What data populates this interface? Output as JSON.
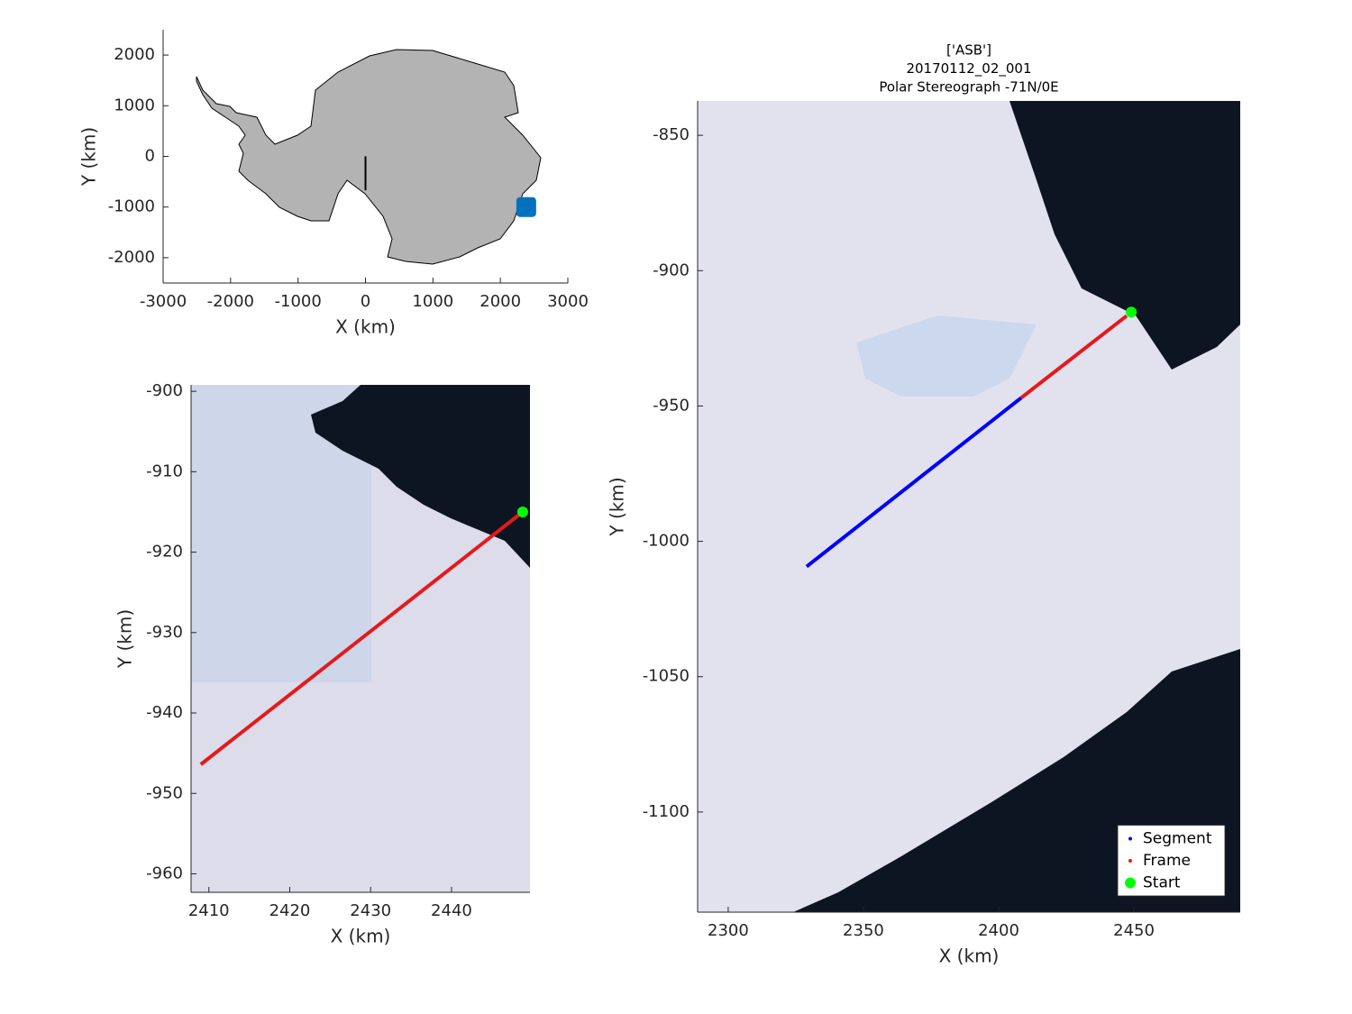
{
  "chart_data": [
    {
      "type": "line",
      "xlabel": "X (km)",
      "ylabel": "Y (km)",
      "xlim": [
        -3000,
        3000
      ],
      "ylim": [
        -2500,
        2500
      ],
      "xticks": [
        -3000,
        -2000,
        -1000,
        0,
        1000,
        2000,
        3000
      ],
      "yticks": [
        -2000,
        -1000,
        0,
        1000,
        2000
      ],
      "series": [
        {
          "color": "#000000",
          "marker": "line",
          "x": [
            0,
            0
          ],
          "values": [
            0,
            -670
          ]
        },
        {
          "color": "#0072bd",
          "marker": "square",
          "x": [
            2383
          ],
          "values": [
            -1000
          ]
        }
      ]
    },
    {
      "type": "line",
      "xlabel": "X (km)",
      "ylabel": "Y (km)",
      "xlim": [
        2407.8,
        2449.7
      ],
      "ylim": [
        -962.3,
        -899.2
      ],
      "xticks": [
        2410,
        2420,
        2430,
        2440
      ],
      "yticks": [
        -960,
        -950,
        -940,
        -930,
        -920,
        -910,
        -900
      ],
      "series": [
        {
          "color": "#e41a1c",
          "marker": "line",
          "x": [
            2409.0,
            2448.8
          ],
          "values": [
            -946.4,
            -915.0
          ]
        },
        {
          "color": "#00ff00",
          "marker": "circle",
          "x": [
            2448.8
          ],
          "values": [
            -915.0
          ]
        }
      ]
    },
    {
      "type": "line",
      "title": [
        "['ASB']",
        "20170112_02_001",
        "Polar Stereograph -71N/0E"
      ],
      "xlabel": "X (km)",
      "ylabel": "Y (km)",
      "xlim": [
        2288.7,
        2489.3
      ],
      "ylim": [
        -1137,
        -837.3
      ],
      "xticks": [
        2300,
        2350,
        2400,
        2450
      ],
      "yticks": [
        -1100,
        -1050,
        -1000,
        -950,
        -900,
        -850
      ],
      "legend": "lower right",
      "series": [
        {
          "name": "Segment",
          "color": "#0000ff",
          "marker": "line",
          "x": [
            2329.0,
            2408.3
          ],
          "values": [
            -1009.3,
            -947.0
          ]
        },
        {
          "name": "Frame",
          "color": "#e41a1c",
          "marker": "line",
          "x": [
            2408.3,
            2447.3
          ],
          "values": [
            -947.0,
            -916.7
          ]
        },
        {
          "name": "Start",
          "color": "#00ff00",
          "marker": "circle",
          "x": [
            2449.0
          ],
          "values": [
            -915.3
          ]
        }
      ]
    }
  ]
}
